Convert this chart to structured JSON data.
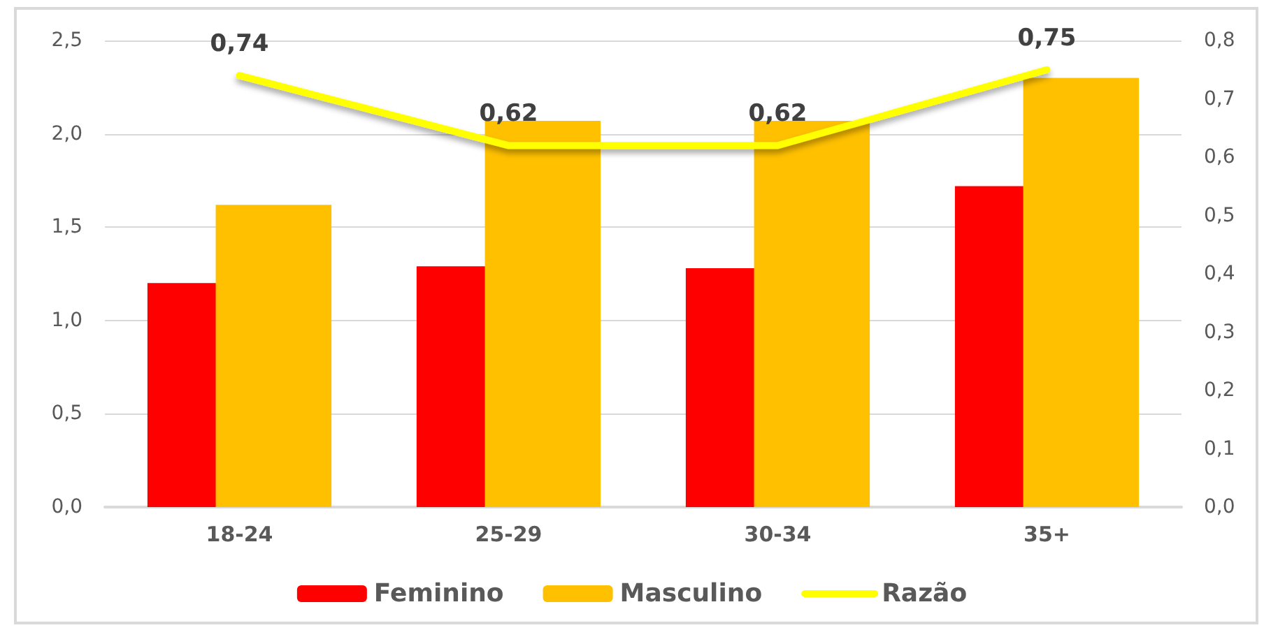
{
  "chart_data": {
    "type": "bar",
    "categories": [
      "18-24",
      "25-29",
      "30-34",
      "35+"
    ],
    "series": [
      {
        "name": "Feminino",
        "color": "#ff0000",
        "values": [
          1.2,
          1.29,
          1.28,
          1.72
        ]
      },
      {
        "name": "Masculino",
        "color": "#ffc000",
        "values": [
          1.62,
          2.07,
          2.07,
          2.3
        ]
      },
      {
        "name": "Razão",
        "type": "line",
        "axis": "y2",
        "color": "#ffff00",
        "values": [
          0.74,
          0.62,
          0.62,
          0.75
        ],
        "value_labels": [
          "0,74",
          "0,62",
          "0,62",
          "0,75"
        ]
      }
    ],
    "ylim": [
      0,
      2.5
    ],
    "yticks": [
      {
        "value": 0,
        "label": "0,0"
      },
      {
        "value": 0.5,
        "label": "0,5"
      },
      {
        "value": 1,
        "label": "1,0"
      },
      {
        "value": 1.5,
        "label": "1,5"
      },
      {
        "value": 2,
        "label": "2,0"
      },
      {
        "value": 2.5,
        "label": "2,5"
      }
    ],
    "y2lim": [
      0,
      0.8
    ],
    "y2ticks": [
      {
        "value": 0,
        "label": "0,0"
      },
      {
        "value": 0.1,
        "label": "0,1"
      },
      {
        "value": 0.2,
        "label": "0,2"
      },
      {
        "value": 0.3,
        "label": "0,3"
      },
      {
        "value": 0.4,
        "label": "0,4"
      },
      {
        "value": 0.5,
        "label": "0,5"
      },
      {
        "value": 0.6,
        "label": "0,6"
      },
      {
        "value": 0.7,
        "label": "0,7"
      },
      {
        "value": 0.8,
        "label": "0,8"
      }
    ],
    "grid": "y",
    "legend": "bottom"
  }
}
